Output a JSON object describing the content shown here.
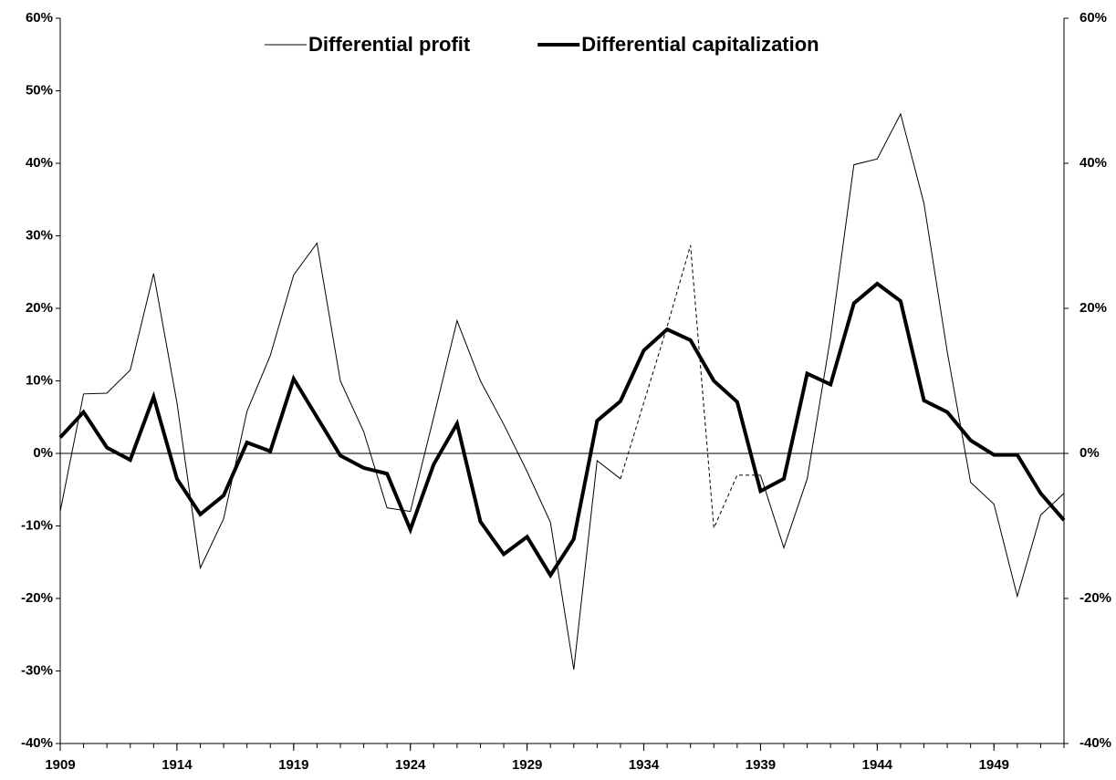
{
  "chart_data": {
    "type": "line",
    "x": [
      1909,
      1910,
      1911,
      1912,
      1913,
      1914,
      1915,
      1916,
      1917,
      1918,
      1919,
      1920,
      1921,
      1922,
      1923,
      1924,
      1925,
      1926,
      1927,
      1928,
      1929,
      1930,
      1931,
      1932,
      1933,
      1934,
      1935,
      1936,
      1937,
      1938,
      1939,
      1940,
      1941,
      1942,
      1943,
      1944,
      1945,
      1946,
      1947,
      1948,
      1949,
      1950,
      1951,
      1952
    ],
    "xlim": [
      1909,
      1952
    ],
    "xticks": [
      1909,
      1914,
      1919,
      1924,
      1929,
      1934,
      1939,
      1944,
      1949
    ],
    "ylim": [
      -40,
      60
    ],
    "yticks": [
      {
        "value": -40,
        "label": "-40%"
      },
      {
        "value": -30,
        "label": "-30%"
      },
      {
        "value": -20,
        "label": "-20%"
      },
      {
        "value": -10,
        "label": "-10%"
      },
      {
        "value": 0,
        "label": "0%"
      },
      {
        "value": 10,
        "label": "10%"
      },
      {
        "value": 20,
        "label": "20%"
      },
      {
        "value": 30,
        "label": "30%"
      },
      {
        "value": 40,
        "label": "40%"
      },
      {
        "value": 50,
        "label": "50%"
      },
      {
        "value": 60,
        "label": "60%"
      }
    ],
    "y2lim": [
      -40,
      60
    ],
    "y2ticks": [
      {
        "value": -40,
        "label": "-40%"
      },
      {
        "value": -20,
        "label": "-20%"
      },
      {
        "value": 0,
        "label": "0%"
      },
      {
        "value": 20,
        "label": "20%"
      },
      {
        "value": 40,
        "label": "40%"
      },
      {
        "value": 60,
        "label": "60%"
      }
    ],
    "legend": "top",
    "series": [
      {
        "name": "Differential profit",
        "color": "#000000",
        "width": 1,
        "values": [
          -8,
          8.2,
          8.3,
          11.5,
          24.8,
          7,
          -15.8,
          -9,
          5.8,
          13.5,
          24.6,
          29,
          10,
          3,
          -7.5,
          -8,
          5,
          18.3,
          10,
          4,
          -2.5,
          -9.5,
          -29.8,
          -1,
          -3.5,
          null,
          null,
          null,
          null,
          null,
          -3,
          -13,
          -3.5,
          16,
          39.8,
          40.6,
          46.8,
          34.5,
          14,
          -4,
          -7,
          -19.7,
          -8.5,
          -5.5
        ]
      },
      {
        "name": "Differential capitalization",
        "color": "#000000",
        "width": 4,
        "values": [
          2.2,
          5.7,
          0.8,
          -0.9,
          7.8,
          -3.5,
          -8.4,
          -5.8,
          1.5,
          0.3,
          10.3,
          5,
          -0.3,
          -2,
          -2.8,
          -10.5,
          -1.5,
          4.1,
          -9.4,
          -13.9,
          -11.5,
          -16.8,
          -11.8,
          4.5,
          7.2,
          14.2,
          17.1,
          15.6,
          10,
          7.1,
          -5.2,
          -3.5,
          11,
          9.5,
          20.7,
          23.4,
          21,
          7.3,
          5.7,
          1.8,
          -0.2,
          -0.2,
          -5.5,
          -9.2
        ]
      },
      {
        "color": "#000000",
        "width": 1,
        "dashed": true,
        "values": [
          null,
          null,
          null,
          null,
          null,
          null,
          null,
          null,
          null,
          null,
          null,
          null,
          null,
          null,
          null,
          null,
          null,
          null,
          null,
          null,
          null,
          null,
          null,
          null,
          -3.5,
          7,
          17.5,
          28.7,
          -10.3,
          -3,
          -3,
          null,
          null,
          null,
          null,
          null,
          null,
          null,
          null,
          null,
          null,
          null,
          null,
          null
        ]
      }
    ]
  }
}
